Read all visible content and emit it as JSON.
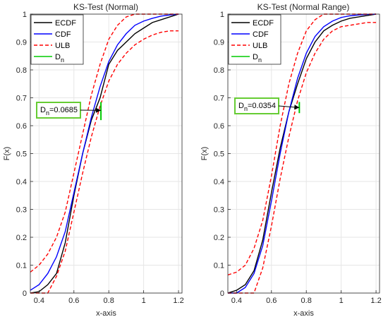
{
  "colors": {
    "ecdf": "#000000",
    "cdf": "#0000ff",
    "ulb": "#ff0000",
    "dn": "#00cc00",
    "annotation_border": "#66cc33",
    "grid": "#e6e6e6"
  },
  "chart_data": [
    {
      "type": "line",
      "title": "KS-Test (Normal)",
      "xlabel": "x-axis",
      "ylabel": "F(x)",
      "xlim": [
        0.35,
        1.22
      ],
      "ylim": [
        0,
        1
      ],
      "xticks": [
        0.4,
        0.6,
        0.8,
        1,
        1.2
      ],
      "xtick_labels": [
        "0.4",
        "0.6",
        "0.8",
        "1",
        "1.2"
      ],
      "yticks": [
        0,
        0.1,
        0.2,
        0.3,
        0.4,
        0.5,
        0.6,
        0.7,
        0.8,
        0.9,
        1
      ],
      "ytick_labels": [
        "0",
        "0.1",
        "0.2",
        "0.3",
        "0.4",
        "0.5",
        "0.6",
        "0.7",
        "0.8",
        "0.9",
        "1"
      ],
      "grid": true,
      "legend": {
        "placement": "top-left",
        "entries": [
          "ECDF",
          "CDF",
          "ULB",
          "Dn"
        ]
      },
      "series": [
        {
          "name": "ECDF",
          "style": "solid",
          "color": "ecdf",
          "x": [
            0.35,
            0.4,
            0.45,
            0.5,
            0.55,
            0.6,
            0.65,
            0.7,
            0.75,
            0.8,
            0.85,
            0.9,
            0.95,
            1.0,
            1.05,
            1.1,
            1.15,
            1.2
          ],
          "y": [
            0.0,
            0.005,
            0.03,
            0.07,
            0.18,
            0.35,
            0.5,
            0.62,
            0.7,
            0.82,
            0.87,
            0.9,
            0.93,
            0.95,
            0.97,
            0.98,
            0.99,
            1.0
          ]
        },
        {
          "name": "CDF",
          "style": "solid",
          "color": "cdf",
          "x": [
            0.35,
            0.4,
            0.45,
            0.5,
            0.55,
            0.6,
            0.65,
            0.7,
            0.75,
            0.8,
            0.85,
            0.9,
            0.95,
            1.0,
            1.05,
            1.1,
            1.15,
            1.2
          ],
          "y": [
            0.01,
            0.03,
            0.07,
            0.13,
            0.22,
            0.36,
            0.5,
            0.63,
            0.74,
            0.83,
            0.89,
            0.93,
            0.96,
            0.975,
            0.985,
            0.993,
            0.997,
            1.0
          ]
        },
        {
          "name": "ULB",
          "style": "dashed",
          "color": "ulb",
          "x": [
            0.35,
            0.4,
            0.45,
            0.5,
            0.55,
            0.6,
            0.65,
            0.7,
            0.75,
            0.8,
            0.85,
            0.9,
            0.95,
            1.0,
            1.05,
            1.1,
            1.15,
            1.2
          ],
          "y": [
            0.075,
            0.1,
            0.14,
            0.2,
            0.29,
            0.43,
            0.57,
            0.71,
            0.82,
            0.91,
            0.96,
            0.99,
            1.0,
            1.0,
            1.0,
            1.0,
            1.0,
            1.0
          ]
        },
        {
          "name": "ULB",
          "style": "dashed",
          "color": "ulb",
          "x": [
            0.35,
            0.4,
            0.45,
            0.5,
            0.55,
            0.6,
            0.65,
            0.7,
            0.75,
            0.8,
            0.85,
            0.9,
            0.95,
            1.0,
            1.05,
            1.1,
            1.15,
            1.2
          ],
          "y": [
            0.0,
            0.0,
            0.0,
            0.06,
            0.15,
            0.29,
            0.43,
            0.56,
            0.67,
            0.76,
            0.82,
            0.86,
            0.89,
            0.91,
            0.925,
            0.935,
            0.94,
            0.94
          ]
        },
        {
          "name": "Dn",
          "style": "solid",
          "color": "dn",
          "x": [
            0.755,
            0.755
          ],
          "y": [
            0.685,
            0.62
          ]
        }
      ],
      "annotation": {
        "prefix": "D",
        "subscript": "n",
        "value": "=0.0685",
        "arrow_x": 0.755,
        "arrow_y": 0.655
      }
    },
    {
      "type": "line",
      "title": "KS-Test (Normal Range)",
      "xlabel": "x-axis",
      "ylabel": "F(x)",
      "xlim": [
        0.35,
        1.22
      ],
      "ylim": [
        0,
        1
      ],
      "xticks": [
        0.4,
        0.6,
        0.8,
        1,
        1.2
      ],
      "xtick_labels": [
        "0.4",
        "0.6",
        "0.8",
        "1",
        "1.2"
      ],
      "yticks": [
        0,
        0.1,
        0.2,
        0.3,
        0.4,
        0.5,
        0.6,
        0.7,
        0.8,
        0.9,
        1
      ],
      "ytick_labels": [
        "0",
        "0.1",
        "0.2",
        "0.3",
        "0.4",
        "0.5",
        "0.6",
        "0.7",
        "0.8",
        "0.9",
        "1"
      ],
      "grid": true,
      "legend": {
        "placement": "top-left",
        "entries": [
          "ECDF",
          "CDF",
          "ULB",
          "Dn"
        ]
      },
      "series": [
        {
          "name": "ECDF",
          "style": "solid",
          "color": "ecdf",
          "x": [
            0.35,
            0.4,
            0.45,
            0.5,
            0.55,
            0.6,
            0.65,
            0.7,
            0.75,
            0.8,
            0.85,
            0.9,
            0.95,
            1.0,
            1.05,
            1.1,
            1.15,
            1.2
          ],
          "y": [
            0.0,
            0.01,
            0.03,
            0.08,
            0.19,
            0.36,
            0.52,
            0.65,
            0.75,
            0.84,
            0.9,
            0.94,
            0.96,
            0.975,
            0.985,
            0.99,
            0.995,
            1.0
          ]
        },
        {
          "name": "CDF",
          "style": "solid",
          "color": "cdf",
          "x": [
            0.35,
            0.4,
            0.45,
            0.5,
            0.55,
            0.6,
            0.65,
            0.7,
            0.75,
            0.8,
            0.85,
            0.9,
            0.95,
            1.0,
            1.05,
            1.1,
            1.15,
            1.2
          ],
          "y": [
            0.0,
            0.0,
            0.02,
            0.07,
            0.17,
            0.33,
            0.5,
            0.65,
            0.77,
            0.86,
            0.92,
            0.955,
            0.975,
            0.988,
            0.994,
            0.997,
            0.999,
            1.0
          ]
        },
        {
          "name": "ULB",
          "style": "dashed",
          "color": "ulb",
          "x": [
            0.35,
            0.4,
            0.45,
            0.5,
            0.55,
            0.6,
            0.65,
            0.7,
            0.75,
            0.8,
            0.85,
            0.9,
            0.95,
            1.0,
            1.05,
            1.1,
            1.15,
            1.2
          ],
          "y": [
            0.065,
            0.075,
            0.1,
            0.16,
            0.26,
            0.42,
            0.6,
            0.75,
            0.86,
            0.94,
            0.98,
            1.0,
            1.0,
            1.0,
            1.0,
            1.0,
            1.0,
            1.0
          ]
        },
        {
          "name": "ULB",
          "style": "dashed",
          "color": "ulb",
          "x": [
            0.35,
            0.4,
            0.45,
            0.5,
            0.55,
            0.6,
            0.65,
            0.7,
            0.75,
            0.8,
            0.85,
            0.9,
            0.95,
            1.0,
            1.05,
            1.1,
            1.15,
            1.2
          ],
          "y": [
            0.0,
            0.0,
            0.0,
            0.0,
            0.09,
            0.24,
            0.41,
            0.56,
            0.69,
            0.79,
            0.86,
            0.91,
            0.94,
            0.955,
            0.96,
            0.965,
            0.97,
            0.97
          ]
        },
        {
          "name": "Dn",
          "style": "solid",
          "color": "dn",
          "x": [
            0.76,
            0.76
          ],
          "y": [
            0.685,
            0.645
          ]
        }
      ],
      "annotation": {
        "prefix": "D",
        "subscript": "n",
        "value": "=0.0354",
        "arrow_x": 0.76,
        "arrow_y": 0.665
      }
    }
  ]
}
